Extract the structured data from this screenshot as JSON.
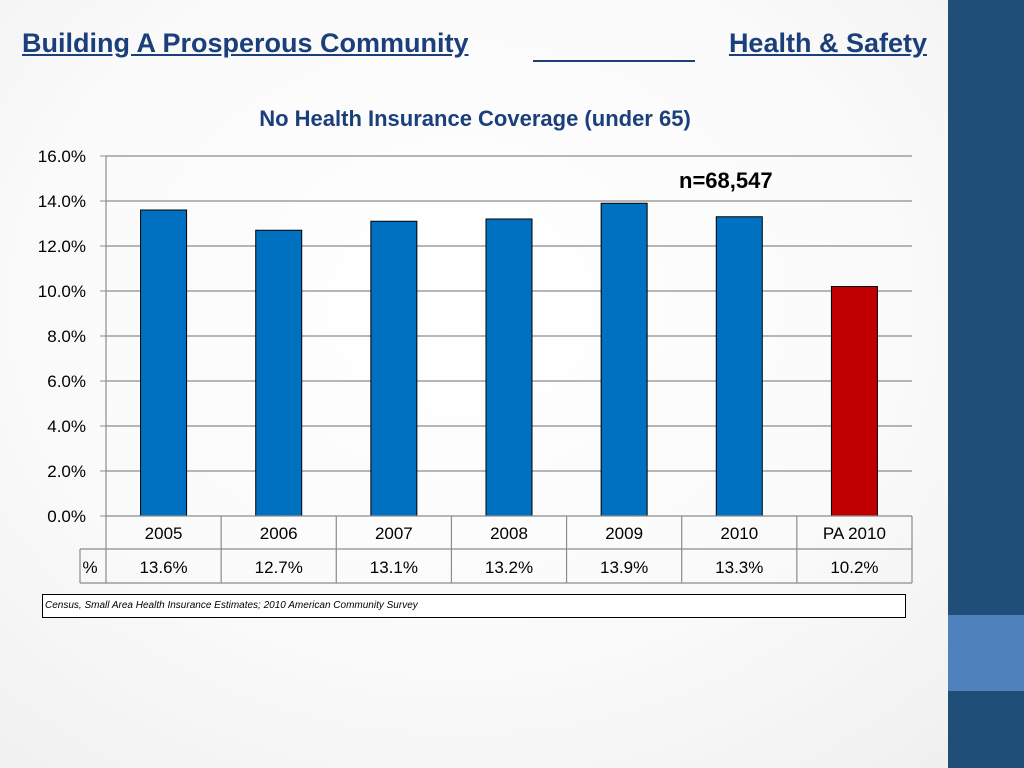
{
  "header": {
    "title_left": "Building A Prosperous Community",
    "title_right": "Health & Safety"
  },
  "annotation": "n=68,547",
  "source": "Census, Small Area Health Insurance Estimates; 2010 American Community Survey",
  "colors": {
    "bar": "#0070c0",
    "highlight_bar": "#c00000",
    "title": "#1b3f7a",
    "side_band": "#1f4e79",
    "side_accent": "#4f81bd"
  },
  "chart_data": {
    "type": "bar",
    "title": "No Health Insurance Coverage (under 65)",
    "categories": [
      "2005",
      "2006",
      "2007",
      "2008",
      "2009",
      "2010",
      "PA 2010"
    ],
    "values": [
      13.6,
      12.7,
      13.1,
      13.2,
      13.9,
      13.3,
      10.2
    ],
    "value_labels": [
      "13.6%",
      "12.7%",
      "13.1%",
      "13.2%",
      "13.9%",
      "13.3%",
      "10.2%"
    ],
    "highlight_category": "PA 2010",
    "ylim": [
      0,
      16
    ],
    "y_ticks": [
      "0.0%",
      "2.0%",
      "4.0%",
      "6.0%",
      "8.0%",
      "10.0%",
      "12.0%",
      "14.0%",
      "16.0%"
    ],
    "y_tick_values": [
      0,
      2,
      4,
      6,
      8,
      10,
      12,
      14,
      16
    ],
    "data_table_row_label": "%",
    "grid": true,
    "legend": "none"
  }
}
